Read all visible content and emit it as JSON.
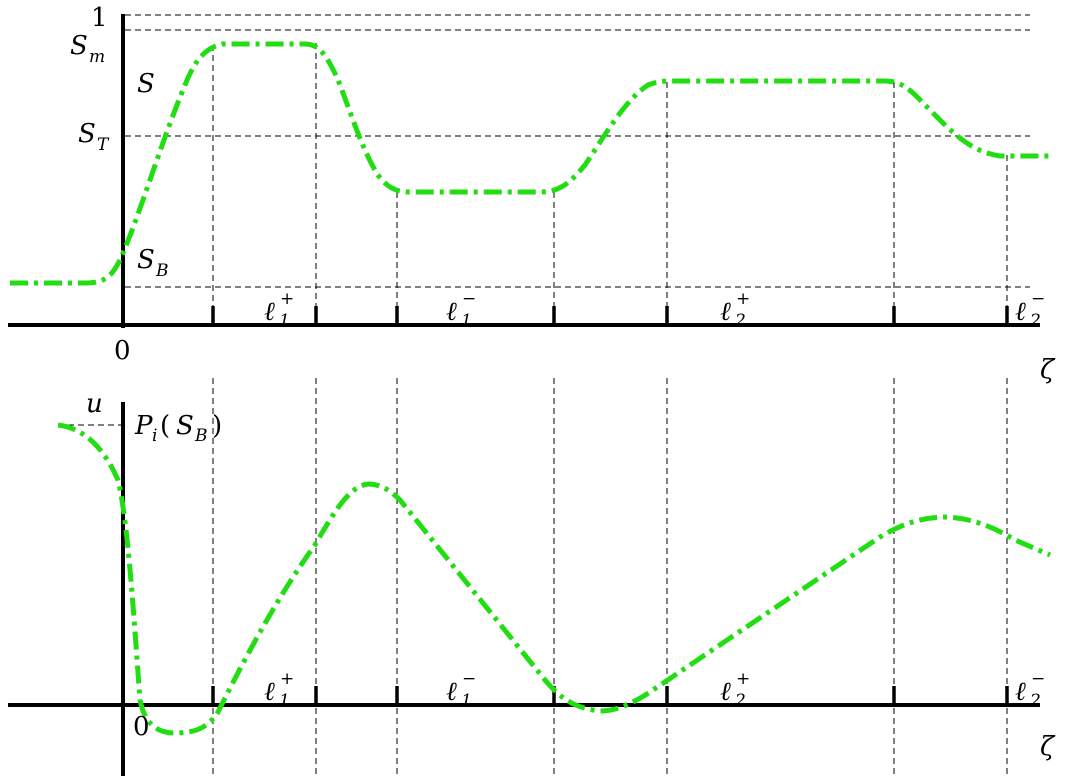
{
  "top_panel": {
    "curve_label": "S",
    "y_axis_top_label": "1",
    "level_labels": {
      "sm": {
        "base": "S",
        "sub": "m"
      },
      "st": {
        "base": "S",
        "sub": "T"
      },
      "sb": {
        "base": "S",
        "sub": "B"
      }
    },
    "origin_label": "0",
    "x_axis_label": "ζ",
    "interval_labels": [
      {
        "base": "ℓ",
        "sub": "1",
        "sup": "+"
      },
      {
        "base": "ℓ",
        "sub": "1",
        "sup": "−"
      },
      {
        "base": "ℓ",
        "sub": "2",
        "sup": "+"
      },
      {
        "base": "ℓ",
        "sub": "2",
        "sup": "−"
      }
    ]
  },
  "bottom_panel": {
    "y_axis_label": "u",
    "pi_label": {
      "p": "P",
      "i": "i",
      "open": "(",
      "s": "S",
      "b": "B",
      "close": ")"
    },
    "origin_label": "0",
    "x_axis_label": "ζ",
    "interval_labels": [
      {
        "base": "ℓ",
        "sub": "1",
        "sup": "+"
      },
      {
        "base": "ℓ",
        "sub": "1",
        "sup": "−"
      },
      {
        "base": "ℓ",
        "sub": "2",
        "sup": "+"
      },
      {
        "base": "ℓ",
        "sub": "2",
        "sup": "−"
      }
    ]
  },
  "colors": {
    "curve": "#22dd11",
    "axis": "#000000"
  }
}
